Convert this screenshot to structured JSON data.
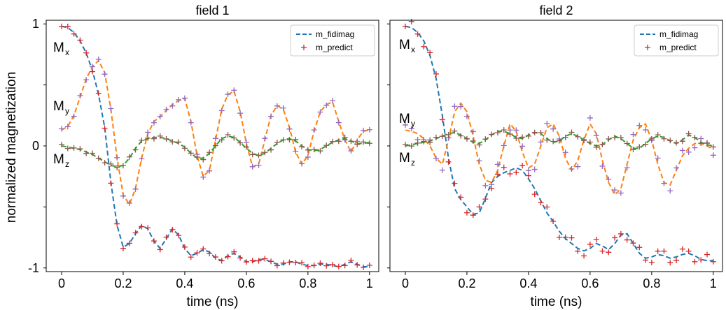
{
  "figure": {
    "ylabel": "normalized magnetization",
    "ytick_labels": [
      "1",
      "0",
      "-1"
    ],
    "component_labels": {
      "mx_main": "M",
      "mx_sub": "x",
      "my_main": "M",
      "my_sub": "y",
      "mz_main": "M",
      "mz_sub": "z"
    }
  },
  "chart_data": [
    {
      "type": "line",
      "title": "field 1",
      "xlabel": "time (ns)",
      "ylabel": "normalized magnetization",
      "xlim": [
        -0.05,
        1.03
      ],
      "ylim": [
        -1.03,
        1.03
      ],
      "xticks": [
        0,
        0.2,
        0.4,
        0.6,
        0.8,
        1
      ],
      "xtick_labels": [
        "0",
        "0.2",
        "0.4",
        "0.6",
        "0.8",
        "1"
      ],
      "legend": {
        "position": "top-right",
        "entries": [
          "m_fidimag",
          "m_predict"
        ]
      },
      "colors": {
        "mx": "#1f77b4",
        "my": "#ff7f0e",
        "mz": "#2ca02c",
        "pred_mx": "#d62728",
        "pred_my": "#9467bd",
        "pred_mz": "#8c564b"
      },
      "series": [
        {
          "name": "Mx",
          "x": [
            0,
            0.02,
            0.04,
            0.06,
            0.08,
            0.1,
            0.12,
            0.14,
            0.16,
            0.18,
            0.2,
            0.22,
            0.24,
            0.26,
            0.28,
            0.3,
            0.32,
            0.34,
            0.36,
            0.38,
            0.4,
            0.42,
            0.44,
            0.46,
            0.48,
            0.5,
            0.52,
            0.54,
            0.56,
            0.58,
            0.6,
            0.62,
            0.64,
            0.66,
            0.68,
            0.7,
            0.72,
            0.74,
            0.76,
            0.78,
            0.8,
            0.82,
            0.84,
            0.86,
            0.88,
            0.9,
            0.92,
            0.94,
            0.96,
            0.98,
            1.0
          ],
          "y": [
            0.98,
            0.97,
            0.93,
            0.86,
            0.76,
            0.62,
            0.42,
            0.15,
            -0.3,
            -0.65,
            -0.83,
            -0.8,
            -0.72,
            -0.65,
            -0.68,
            -0.78,
            -0.84,
            -0.76,
            -0.68,
            -0.73,
            -0.84,
            -0.9,
            -0.88,
            -0.85,
            -0.87,
            -0.92,
            -0.94,
            -0.9,
            -0.88,
            -0.91,
            -0.95,
            -0.95,
            -0.93,
            -0.93,
            -0.95,
            -0.97,
            -0.97,
            -0.95,
            -0.95,
            -0.97,
            -0.98,
            -0.98,
            -0.97,
            -0.97,
            -0.98,
            -0.99,
            -0.97,
            -0.95,
            -0.97,
            -0.99,
            -0.99
          ]
        },
        {
          "name": "My",
          "x": [
            0,
            0.02,
            0.04,
            0.06,
            0.08,
            0.1,
            0.12,
            0.14,
            0.16,
            0.18,
            0.2,
            0.22,
            0.24,
            0.26,
            0.28,
            0.3,
            0.32,
            0.34,
            0.36,
            0.38,
            0.4,
            0.42,
            0.44,
            0.46,
            0.48,
            0.5,
            0.52,
            0.54,
            0.56,
            0.58,
            0.6,
            0.62,
            0.64,
            0.66,
            0.68,
            0.7,
            0.72,
            0.74,
            0.76,
            0.78,
            0.8,
            0.82,
            0.84,
            0.86,
            0.88,
            0.9,
            0.92,
            0.94,
            0.96,
            0.98,
            1.0
          ],
          "y": [
            0.13,
            0.16,
            0.25,
            0.4,
            0.55,
            0.65,
            0.7,
            0.6,
            0.3,
            -0.1,
            -0.4,
            -0.48,
            -0.35,
            -0.1,
            0.1,
            0.2,
            0.24,
            0.29,
            0.34,
            0.37,
            0.39,
            0.2,
            -0.08,
            -0.25,
            -0.2,
            0.05,
            0.3,
            0.42,
            0.45,
            0.28,
            0.02,
            -0.17,
            -0.15,
            0.05,
            0.25,
            0.33,
            0.3,
            0.15,
            -0.05,
            -0.15,
            -0.08,
            0.12,
            0.28,
            0.34,
            0.36,
            0.2,
            0.05,
            -0.05,
            0.05,
            0.12,
            0.13
          ]
        },
        {
          "name": "Mz",
          "x": [
            0,
            0.02,
            0.04,
            0.06,
            0.08,
            0.1,
            0.12,
            0.14,
            0.16,
            0.18,
            0.2,
            0.22,
            0.24,
            0.26,
            0.28,
            0.3,
            0.32,
            0.34,
            0.36,
            0.38,
            0.4,
            0.42,
            0.44,
            0.46,
            0.48,
            0.5,
            0.52,
            0.54,
            0.56,
            0.58,
            0.6,
            0.62,
            0.64,
            0.66,
            0.68,
            0.7,
            0.72,
            0.74,
            0.76,
            0.78,
            0.8,
            0.82,
            0.84,
            0.86,
            0.88,
            0.9,
            0.92,
            0.94,
            0.96,
            0.98,
            1.0
          ],
          "y": [
            0.0,
            -0.01,
            -0.02,
            -0.03,
            -0.05,
            -0.07,
            -0.1,
            -0.13,
            -0.16,
            -0.17,
            -0.16,
            -0.1,
            -0.02,
            0.04,
            0.06,
            0.07,
            0.07,
            0.06,
            0.04,
            0.02,
            -0.01,
            -0.06,
            -0.1,
            -0.1,
            -0.06,
            0.0,
            0.06,
            0.08,
            0.07,
            0.03,
            -0.02,
            -0.06,
            -0.08,
            -0.06,
            -0.02,
            0.02,
            0.05,
            0.06,
            0.04,
            0.0,
            -0.03,
            -0.04,
            -0.03,
            0.0,
            0.03,
            0.05,
            0.06,
            0.04,
            0.02,
            0.02,
            0.03
          ]
        }
      ]
    },
    {
      "type": "line",
      "title": "field 2",
      "xlabel": "time (ns)",
      "ylabel": "",
      "xlim": [
        -0.05,
        1.03
      ],
      "ylim": [
        -1.03,
        1.03
      ],
      "xticks": [
        0,
        0.2,
        0.4,
        0.6,
        0.8,
        1
      ],
      "xtick_labels": [
        "0",
        "0.2",
        "0.4",
        "0.6",
        "0.8",
        "1"
      ],
      "legend": {
        "position": "top-right",
        "entries": [
          "m_fidimag",
          "m_predict"
        ]
      },
      "colors": {
        "mx": "#1f77b4",
        "my": "#ff7f0e",
        "mz": "#2ca02c",
        "pred_mx": "#d62728",
        "pred_my": "#9467bd",
        "pred_mz": "#8c564b"
      },
      "series": [
        {
          "name": "Mx",
          "x": [
            0,
            0.02,
            0.04,
            0.06,
            0.08,
            0.1,
            0.12,
            0.14,
            0.16,
            0.18,
            0.2,
            0.22,
            0.24,
            0.26,
            0.28,
            0.3,
            0.32,
            0.34,
            0.36,
            0.38,
            0.4,
            0.42,
            0.44,
            0.46,
            0.48,
            0.5,
            0.52,
            0.54,
            0.56,
            0.58,
            0.6,
            0.62,
            0.64,
            0.66,
            0.68,
            0.7,
            0.72,
            0.74,
            0.76,
            0.78,
            0.8,
            0.82,
            0.84,
            0.86,
            0.88,
            0.9,
            0.92,
            0.94,
            0.96,
            0.98,
            1.0
          ],
          "y": [
            0.98,
            0.97,
            0.93,
            0.86,
            0.74,
            0.55,
            0.25,
            -0.1,
            -0.35,
            -0.44,
            -0.5,
            -0.56,
            -0.55,
            -0.43,
            -0.3,
            -0.25,
            -0.22,
            -0.2,
            -0.18,
            -0.2,
            -0.27,
            -0.35,
            -0.45,
            -0.55,
            -0.62,
            -0.7,
            -0.76,
            -0.8,
            -0.84,
            -0.86,
            -0.84,
            -0.8,
            -0.82,
            -0.85,
            -0.8,
            -0.73,
            -0.72,
            -0.8,
            -0.88,
            -0.92,
            -0.91,
            -0.89,
            -0.9,
            -0.92,
            -0.91,
            -0.89,
            -0.88,
            -0.9,
            -0.93,
            -0.94,
            -0.94
          ]
        },
        {
          "name": "My",
          "x": [
            0,
            0.02,
            0.04,
            0.06,
            0.08,
            0.1,
            0.12,
            0.14,
            0.16,
            0.18,
            0.2,
            0.22,
            0.24,
            0.26,
            0.28,
            0.3,
            0.32,
            0.34,
            0.36,
            0.38,
            0.4,
            0.42,
            0.44,
            0.46,
            0.48,
            0.5,
            0.52,
            0.54,
            0.56,
            0.58,
            0.6,
            0.62,
            0.64,
            0.66,
            0.68,
            0.7,
            0.72,
            0.74,
            0.76,
            0.78,
            0.8,
            0.82,
            0.84,
            0.86,
            0.88,
            0.9,
            0.92,
            0.94,
            0.96,
            0.98,
            1.0
          ],
          "y": [
            0.13,
            0.12,
            0.1,
            0.06,
            0.0,
            -0.1,
            -0.15,
            0.05,
            0.28,
            0.35,
            0.28,
            0.08,
            -0.15,
            -0.28,
            -0.3,
            -0.2,
            0.0,
            0.18,
            0.12,
            -0.05,
            -0.18,
            -0.15,
            0.0,
            0.15,
            0.18,
            0.08,
            -0.1,
            -0.2,
            -0.12,
            0.05,
            0.18,
            0.1,
            -0.12,
            -0.3,
            -0.4,
            -0.35,
            -0.15,
            0.05,
            0.15,
            0.18,
            0.05,
            -0.15,
            -0.3,
            -0.32,
            -0.2,
            -0.08,
            -0.02,
            0.02,
            0.02,
            0.0,
            -0.03
          ]
        },
        {
          "name": "Mz",
          "x": [
            0,
            0.02,
            0.04,
            0.06,
            0.08,
            0.1,
            0.12,
            0.14,
            0.16,
            0.18,
            0.2,
            0.22,
            0.24,
            0.26,
            0.28,
            0.3,
            0.32,
            0.34,
            0.36,
            0.38,
            0.4,
            0.42,
            0.44,
            0.46,
            0.48,
            0.5,
            0.52,
            0.54,
            0.56,
            0.58,
            0.6,
            0.62,
            0.64,
            0.66,
            0.68,
            0.7,
            0.72,
            0.74,
            0.76,
            0.78,
            0.8,
            0.82,
            0.84,
            0.86,
            0.88,
            0.9,
            0.92,
            0.94,
            0.96,
            0.98,
            1.0
          ],
          "y": [
            0.0,
            0.01,
            0.02,
            0.03,
            0.04,
            0.06,
            0.08,
            0.1,
            0.11,
            0.09,
            0.06,
            0.03,
            0.02,
            0.05,
            0.09,
            0.12,
            0.12,
            0.1,
            0.07,
            0.06,
            0.09,
            0.11,
            0.1,
            0.06,
            0.03,
            0.04,
            0.08,
            0.1,
            0.08,
            0.05,
            0.02,
            0.0,
            0.01,
            0.05,
            0.08,
            0.06,
            0.02,
            -0.02,
            -0.02,
            0.02,
            0.06,
            0.08,
            0.07,
            0.04,
            0.02,
            0.05,
            0.09,
            0.07,
            0.03,
            0.01,
            0.0
          ]
        }
      ]
    }
  ]
}
